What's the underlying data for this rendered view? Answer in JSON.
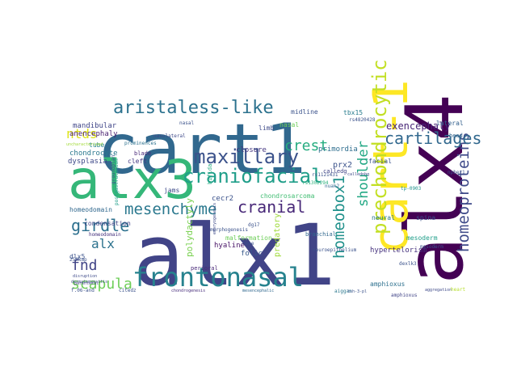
{
  "cloud": {
    "words": [
      {
        "text": "alx1",
        "color": "#414487"
      },
      {
        "text": "cart1",
        "color": "#31688e"
      },
      {
        "text": "alx3",
        "color": "#35b779"
      },
      {
        "text": "alx4",
        "color": "#440154"
      },
      {
        "text": "cart-1",
        "color": "#fde725"
      },
      {
        "text": "frontonasal",
        "color": "#26828e"
      },
      {
        "text": "prechondrocytic",
        "color": "#c2df23"
      },
      {
        "text": "aristaless-like",
        "color": "#2c728e"
      },
      {
        "text": "craniofacial",
        "color": "#1f9e89"
      },
      {
        "text": "maxillary",
        "color": "#3b528b"
      },
      {
        "text": "homeoproteins",
        "color": "#3e4a89"
      },
      {
        "text": "cartilages",
        "color": "#31688e"
      },
      {
        "text": "mesenchyme",
        "color": "#2a788e"
      },
      {
        "text": "homeobox1",
        "color": "#21918c"
      },
      {
        "text": "crest",
        "color": "#27ad81"
      },
      {
        "text": "cranial",
        "color": "#482878"
      },
      {
        "text": "shoulder",
        "color": "#22a884"
      },
      {
        "text": "girdle",
        "color": "#2d708e"
      },
      {
        "text": "scapula",
        "color": "#6ece58"
      },
      {
        "text": "ntds",
        "color": "#dde318"
      },
      {
        "text": "fnd",
        "color": "#414487"
      },
      {
        "text": "alx",
        "color": "#2c728e"
      },
      {
        "text": "exencephaly",
        "color": "#482677"
      },
      {
        "text": "polydactyly",
        "color": "#7ad151"
      },
      {
        "text": "predatory",
        "color": "#9fda3a"
      },
      {
        "text": "prx2",
        "color": "#3b528b"
      },
      {
        "text": "mandibular",
        "color": "#404688"
      },
      {
        "text": "anencephaly",
        "color": "#481f70"
      },
      {
        "text": "chondrocyte",
        "color": "#2a788e"
      },
      {
        "text": "dysplasia",
        "color": "#3e4989"
      },
      {
        "text": "tube",
        "color": "#26828e"
      },
      {
        "text": "cecr2",
        "color": "#3b528b"
      },
      {
        "text": "hyaline",
        "color": "#481467"
      },
      {
        "text": "malformation",
        "color": "#6ece58"
      },
      {
        "text": "folic",
        "color": "#38598c"
      },
      {
        "text": "closure",
        "color": "#453781"
      },
      {
        "text": "primordia",
        "color": "#2e6e8e"
      },
      {
        "text": "facial",
        "color": "#3b528b"
      },
      {
        "text": "hypertelorism",
        "color": "#46327e"
      },
      {
        "text": "mesoderm",
        "color": "#1f9e89"
      },
      {
        "text": "amphioxus",
        "color": "#2d708e"
      },
      {
        "text": "lateral",
        "color": "#34618d"
      },
      {
        "text": "nasal",
        "color": "#6ece58"
      },
      {
        "text": "tbx15",
        "color": "#287c8e"
      },
      {
        "text": "midline",
        "color": "#3b528b"
      },
      {
        "text": "limb",
        "color": "#3e4a89"
      },
      {
        "text": "neural",
        "color": "#2a788e"
      },
      {
        "text": "spina",
        "color": "#3b528b"
      },
      {
        "text": "bifida",
        "color": "#25ab82"
      },
      {
        "text": "chondrosarcoma",
        "color": "#40bd72"
      },
      {
        "text": "condensation",
        "color": "#414487"
      },
      {
        "text": "homeodomain",
        "color": "#31688e"
      },
      {
        "text": "perioral",
        "color": "#482878"
      },
      {
        "text": "dlx5",
        "color": "#3b528b"
      },
      {
        "text": "blade",
        "color": "#482878"
      },
      {
        "text": "cleft",
        "color": "#443983"
      },
      {
        "text": "jams",
        "color": "#3e4a89"
      },
      {
        "text": "nasolateral",
        "color": "#3e4989"
      },
      {
        "text": "prominences",
        "color": "#2c728e"
      },
      {
        "text": "postgastrulation",
        "color": "#1f9e89"
      },
      {
        "text": "groundplan",
        "color": "#3b528b"
      },
      {
        "text": "uncharacterized",
        "color": "#a2da37"
      },
      {
        "text": "head",
        "color": "#32658e"
      },
      {
        "text": "nasal",
        "color": "#3b528b"
      },
      {
        "text": "rs4820428",
        "color": "#3b528b"
      },
      {
        "text": "tp-0903",
        "color": "#21918c"
      },
      {
        "text": "npber1",
        "color": "#3b528b"
      },
      {
        "text": "rs1121431",
        "color": "#3b528b"
      },
      {
        "text": "rs1302294",
        "color": "#2db27d"
      },
      {
        "text": "calledg",
        "color": "#414487"
      },
      {
        "text": "callednbg",
        "color": "#3e4a89"
      },
      {
        "text": "branchial",
        "color": "#31688e"
      },
      {
        "text": "neuroepithelium",
        "color": "#3b528b"
      },
      {
        "text": "mesoderm",
        "color": "#3b528b"
      },
      {
        "text": "amphioxus",
        "color": "#414487"
      },
      {
        "text": "dexlk3",
        "color": "#3b528b"
      },
      {
        "text": "aiggan",
        "color": "#2a788e"
      },
      {
        "text": "citedz",
        "color": "#3b528b"
      },
      {
        "text": "mesencephalic",
        "color": "#31688e"
      },
      {
        "text": "dermatomyositis",
        "color": "#3e4a89"
      },
      {
        "text": "chondrogenesis",
        "color": "#472d7b"
      },
      {
        "text": "morphogenesis",
        "color": "#3b528b"
      },
      {
        "text": "embryogenesis",
        "color": "#3e4a89"
      },
      {
        "text": "dg17",
        "color": "#3b528b"
      },
      {
        "text": "nose",
        "color": "#3b528b"
      },
      {
        "text": "homeodomain",
        "color": "#46327e"
      },
      {
        "text": "250kmp",
        "color": "#3b528b"
      },
      {
        "text": "parenteral",
        "color": "#414487"
      },
      {
        "text": "f.06-and",
        "color": "#3b528b"
      },
      {
        "text": "disruption",
        "color": "#3e4a89"
      },
      {
        "text": "nuak2",
        "color": "#31688e"
      },
      {
        "text": "tsh-3-pl",
        "color": "#3b528b"
      },
      {
        "text": "aggregation",
        "color": "#3e4a89"
      },
      {
        "text": "heart",
        "color": "#b5de2b"
      }
    ]
  }
}
